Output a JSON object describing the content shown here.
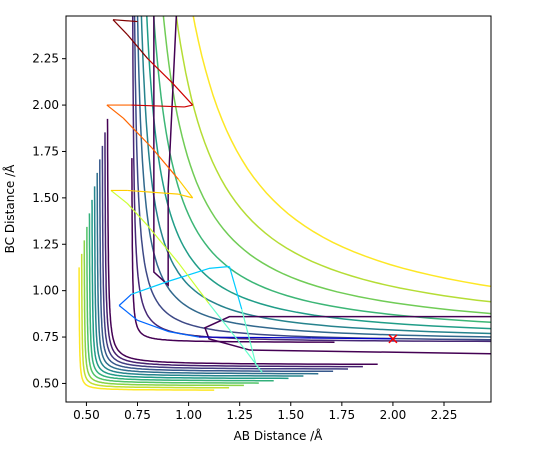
{
  "chart_data": {
    "type": "contour",
    "title": "",
    "xlabel": "AB Distance /Å",
    "ylabel": "BC Distance /Å",
    "xlim": [
      0.4,
      2.48
    ],
    "ylim": [
      0.4,
      2.48
    ],
    "x_ticks": [
      0.5,
      0.75,
      1.0,
      1.25,
      1.5,
      1.75,
      2.0,
      2.25
    ],
    "y_ticks": [
      0.5,
      0.75,
      1.0,
      1.25,
      1.5,
      1.75,
      2.0,
      2.25
    ],
    "x_tick_labels": [
      "0.50",
      "0.75",
      "1.00",
      "1.25",
      "1.50",
      "1.75",
      "2.00",
      "2.25"
    ],
    "y_tick_labels": [
      "0.50",
      "0.75",
      "1.00",
      "1.25",
      "1.50",
      "1.75",
      "2.00",
      "2.25"
    ],
    "grid": false,
    "colormap": "viridis",
    "contour_colors": [
      "#440154",
      "#46327e",
      "#365c8d",
      "#277f8e",
      "#1fa187",
      "#4ac16d",
      "#a0da39",
      "#fde725"
    ],
    "valley_level_offsets": [
      0.09,
      0.16,
      0.23,
      0.31,
      0.39,
      0.48,
      0.58,
      0.7,
      0.84,
      1.0
    ],
    "wall_level_offsets": [
      0.025,
      0.05,
      0.075,
      0.1,
      0.125,
      0.15,
      0.175,
      0.2,
      0.225,
      0.25,
      0.275,
      0.3
    ],
    "trajectory": {
      "description_colors": "jet",
      "points": [
        [
          2.0,
          0.74
        ],
        [
          1.6,
          0.745
        ],
        [
          1.3,
          0.748
        ],
        [
          1.05,
          0.75
        ],
        [
          0.9,
          0.78
        ],
        [
          0.75,
          0.84
        ],
        [
          0.66,
          0.92
        ],
        [
          0.72,
          0.98
        ],
        [
          0.9,
          1.05
        ],
        [
          1.1,
          1.12
        ],
        [
          1.2,
          1.13
        ],
        [
          1.26,
          0.9
        ],
        [
          1.33,
          0.6
        ],
        [
          1.36,
          0.56
        ],
        [
          1.25,
          0.72
        ],
        [
          1.1,
          0.93
        ],
        [
          0.95,
          1.15
        ],
        [
          0.8,
          1.35
        ],
        [
          0.7,
          1.47
        ],
        [
          0.62,
          1.54
        ],
        [
          0.7,
          1.54
        ],
        [
          0.95,
          1.52
        ],
        [
          1.02,
          1.5
        ],
        [
          0.95,
          1.6
        ],
        [
          0.82,
          1.77
        ],
        [
          0.68,
          1.93
        ],
        [
          0.6,
          2.0
        ],
        [
          0.72,
          2.0
        ],
        [
          0.98,
          1.99
        ],
        [
          1.02,
          2.0
        ],
        [
          0.92,
          2.12
        ],
        [
          0.8,
          2.25
        ],
        [
          0.7,
          2.38
        ],
        [
          0.63,
          2.46
        ],
        [
          0.75,
          2.45
        ]
      ]
    },
    "marker": {
      "x": 2.0,
      "y": 0.74,
      "symbol": "x",
      "color": "#ff0000"
    }
  }
}
